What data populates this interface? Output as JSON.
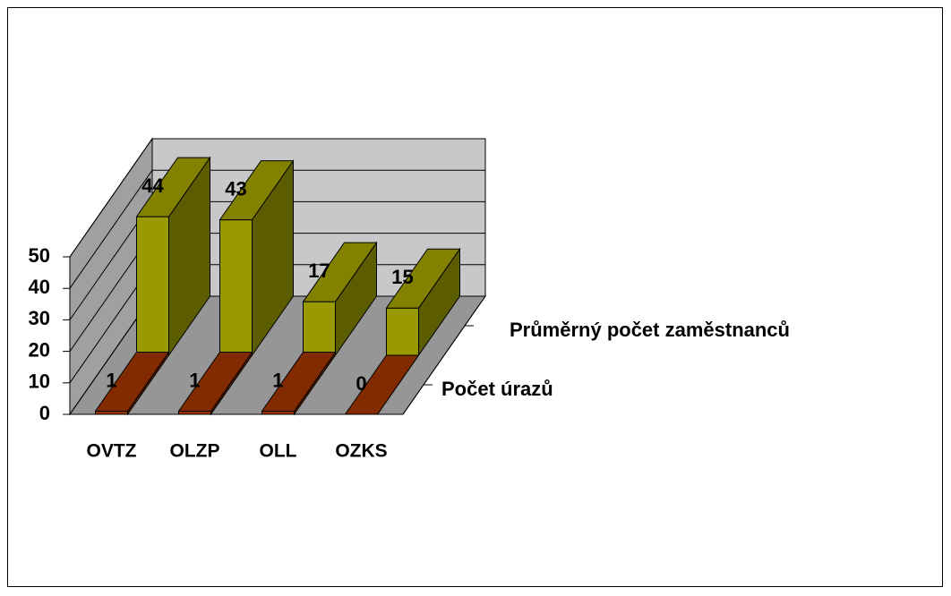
{
  "chart_data": {
    "type": "bar3d",
    "categories": [
      "OVTZ",
      "OLZP",
      "OLL",
      "OZKS"
    ],
    "series": [
      {
        "name": "Počet úrazů",
        "color": "#993300",
        "values": [
          1,
          1,
          1,
          0
        ]
      },
      {
        "name": "Průměrný počet zaměstnanců",
        "color": "#999900",
        "values": [
          44,
          43,
          17,
          15
        ]
      }
    ],
    "ylim": [
      0,
      50
    ],
    "yticks": [
      0,
      10,
      20,
      30,
      40,
      50
    ],
    "grid": true
  }
}
